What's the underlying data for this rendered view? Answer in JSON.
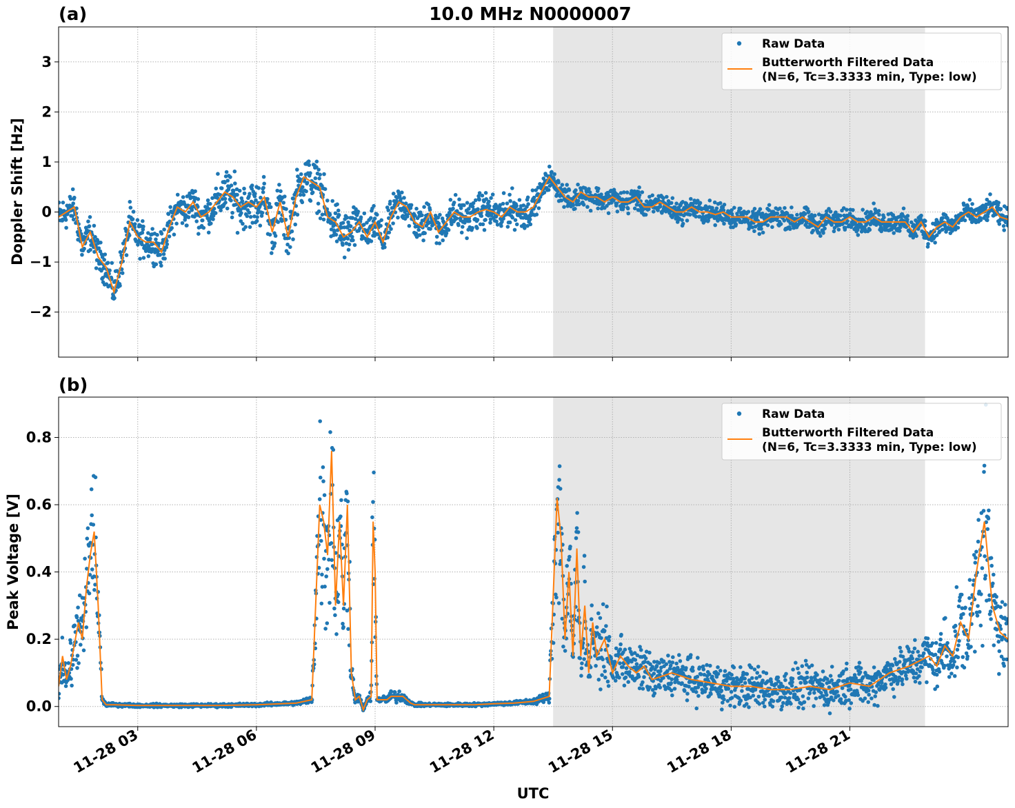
{
  "figure": {
    "title": "10.0 MHz N0000007",
    "xlabel": "UTC"
  },
  "chart_data": [
    {
      "panel_label": "(a)",
      "type": "scatter",
      "ylabel": "Doppler Shift [Hz]",
      "x_range_hours": [
        1.0,
        25.0
      ],
      "ylim": [
        -2.9,
        3.7
      ],
      "yticks": [
        -2,
        -1,
        0,
        1,
        2,
        3
      ],
      "ytick_labels": [
        "−2",
        "−1",
        "0",
        "1",
        "2",
        "3"
      ],
      "xtick_hours": [
        3,
        6,
        9,
        12,
        15,
        18,
        21
      ],
      "xtick_labels": [
        "11-28 03",
        "11-28 06",
        "11-28 09",
        "11-28 12",
        "11-28 15",
        "11-28 18",
        "11-28 21"
      ],
      "shaded_span_hours": [
        13.5,
        22.9
      ],
      "grid": true,
      "legend": {
        "placement": "top-right",
        "entries": [
          {
            "label": "Raw Data",
            "line2": ""
          },
          {
            "label": "Butterworth Filtered Data",
            "line2": "(N=6, Tc=3.3333 min, Type: low)"
          }
        ]
      },
      "colors": {
        "raw": "#1f77b4",
        "filtered": "#ff7f0e",
        "shade": "#e6e6e6",
        "grid": "#b0b0b0"
      },
      "series": [
        {
          "name": "Butterworth Filtered Data",
          "x": [
            1.0,
            1.2,
            1.4,
            1.6,
            1.8,
            2.0,
            2.2,
            2.4,
            2.6,
            2.8,
            3.0,
            3.2,
            3.4,
            3.6,
            3.8,
            4.0,
            4.2,
            4.4,
            4.6,
            4.8,
            5.0,
            5.2,
            5.4,
            5.6,
            5.8,
            6.0,
            6.2,
            6.4,
            6.6,
            6.8,
            7.0,
            7.2,
            7.4,
            7.6,
            7.8,
            8.0,
            8.2,
            8.4,
            8.6,
            8.8,
            9.0,
            9.2,
            9.4,
            9.6,
            9.8,
            10.0,
            10.2,
            10.4,
            10.6,
            10.8,
            11.0,
            11.2,
            11.4,
            11.6,
            11.8,
            12.0,
            12.2,
            12.4,
            12.6,
            12.8,
            13.0,
            13.2,
            13.4,
            13.6,
            13.8,
            14.0,
            14.2,
            14.4,
            14.6,
            14.8,
            15.0,
            15.2,
            15.4,
            15.6,
            15.8,
            16.0,
            16.2,
            16.4,
            16.6,
            16.8,
            17.0,
            17.2,
            17.4,
            17.6,
            17.8,
            18.0,
            18.2,
            18.4,
            18.6,
            18.8,
            19.0,
            19.2,
            19.4,
            19.6,
            19.8,
            20.0,
            20.2,
            20.4,
            20.6,
            20.8,
            21.0,
            21.2,
            21.4,
            21.6,
            21.8,
            22.0,
            22.2,
            22.4,
            22.6,
            22.8,
            23.0,
            23.2,
            23.4,
            23.6,
            23.8,
            24.0,
            24.2,
            24.4,
            24.6,
            24.8,
            25.0
          ],
          "y": [
            -0.1,
            0.0,
            0.1,
            -0.7,
            -0.4,
            -0.9,
            -1.1,
            -1.6,
            -1.0,
            -0.2,
            -0.5,
            -0.6,
            -0.6,
            -0.8,
            -0.3,
            0.1,
            0.0,
            0.2,
            -0.1,
            0.0,
            0.2,
            0.4,
            0.3,
            0.1,
            0.2,
            0.1,
            0.3,
            -0.4,
            0.2,
            -0.5,
            0.3,
            0.7,
            0.6,
            0.5,
            -0.1,
            -0.2,
            -0.5,
            -0.4,
            -0.2,
            -0.5,
            -0.2,
            -0.6,
            -0.1,
            0.2,
            0.1,
            -0.2,
            -0.3,
            0.0,
            -0.4,
            -0.2,
            0.0,
            -0.1,
            -0.1,
            0.0,
            0.05,
            0.0,
            -0.1,
            0.1,
            0.0,
            0.0,
            0.1,
            0.4,
            0.7,
            0.5,
            0.3,
            0.2,
            0.4,
            0.3,
            0.3,
            0.2,
            0.3,
            0.2,
            0.2,
            0.3,
            0.1,
            0.1,
            0.2,
            0.1,
            0.0,
            0.0,
            0.1,
            0.0,
            0.0,
            -0.05,
            0.0,
            -0.1,
            -0.1,
            -0.1,
            -0.2,
            -0.2,
            -0.1,
            -0.1,
            -0.1,
            -0.2,
            -0.1,
            -0.2,
            -0.3,
            -0.1,
            -0.2,
            -0.2,
            -0.1,
            -0.2,
            -0.2,
            -0.1,
            -0.2,
            -0.2,
            -0.2,
            -0.2,
            -0.4,
            -0.2,
            -0.5,
            -0.3,
            -0.2,
            -0.3,
            -0.1,
            0.0,
            -0.1,
            0.0,
            0.1,
            -0.1,
            -0.15
          ]
        }
      ]
    },
    {
      "panel_label": "(b)",
      "type": "scatter",
      "ylabel": "Peak Voltage [V]",
      "x_range_hours": [
        1.0,
        25.0
      ],
      "ylim": [
        -0.06,
        0.92
      ],
      "yticks": [
        0.0,
        0.2,
        0.4,
        0.6,
        0.8
      ],
      "ytick_labels": [
        "0.0",
        "0.2",
        "0.4",
        "0.6",
        "0.8"
      ],
      "xtick_hours": [
        3,
        6,
        9,
        12,
        15,
        18,
        21
      ],
      "xtick_labels": [
        "11-28 03",
        "11-28 06",
        "11-28 09",
        "11-28 12",
        "11-28 15",
        "11-28 18",
        "11-28 21"
      ],
      "shaded_span_hours": [
        13.5,
        22.9
      ],
      "grid": true,
      "legend": {
        "placement": "top-right",
        "entries": [
          {
            "label": "Raw Data",
            "line2": ""
          },
          {
            "label": "Butterworth Filtered Data",
            "line2": "(N=6, Tc=3.3333 min, Type: low)"
          }
        ]
      },
      "colors": {
        "raw": "#1f77b4",
        "filtered": "#ff7f0e",
        "shade": "#e6e6e6",
        "grid": "#b0b0b0"
      },
      "series": [
        {
          "name": "Butterworth Filtered Data",
          "x": [
            1.0,
            1.1,
            1.2,
            1.3,
            1.5,
            1.6,
            1.7,
            1.8,
            1.9,
            2.0,
            2.1,
            2.2,
            2.4,
            3.0,
            4.0,
            5.0,
            6.0,
            7.0,
            7.4,
            7.6,
            7.7,
            7.8,
            7.9,
            8.0,
            8.1,
            8.2,
            8.3,
            8.4,
            8.5,
            8.6,
            8.7,
            8.8,
            8.9,
            8.95,
            9.0,
            9.05,
            9.1,
            9.2,
            9.3,
            9.4,
            9.5,
            9.6,
            9.7,
            9.8,
            9.9,
            10.0,
            10.5,
            11.0,
            11.5,
            12.0,
            12.5,
            13.0,
            13.4,
            13.6,
            13.7,
            13.8,
            13.9,
            14.0,
            14.1,
            14.2,
            14.3,
            14.4,
            14.5,
            14.6,
            14.8,
            15.0,
            15.2,
            15.4,
            15.6,
            15.8,
            16.0,
            16.5,
            17.0,
            17.5,
            18.0,
            18.5,
            19.0,
            19.5,
            20.0,
            20.5,
            21.0,
            21.5,
            22.0,
            22.5,
            23.0,
            23.2,
            23.4,
            23.6,
            23.8,
            24.0,
            24.2,
            24.4,
            24.6,
            24.8,
            25.0
          ],
          "y": [
            0.06,
            0.15,
            0.08,
            0.12,
            0.25,
            0.2,
            0.35,
            0.45,
            0.52,
            0.3,
            0.02,
            0.005,
            0.005,
            0.003,
            0.003,
            0.003,
            0.005,
            0.01,
            0.02,
            0.6,
            0.55,
            0.45,
            0.76,
            0.3,
            0.55,
            0.3,
            0.6,
            0.1,
            0.02,
            0.03,
            -0.01,
            0.02,
            0.03,
            0.55,
            0.4,
            0.02,
            0.02,
            0.02,
            0.02,
            0.03,
            0.03,
            0.03,
            0.03,
            0.02,
            0.01,
            0.005,
            0.005,
            0.005,
            0.005,
            0.008,
            0.01,
            0.015,
            0.03,
            0.62,
            0.5,
            0.2,
            0.4,
            0.15,
            0.47,
            0.15,
            0.3,
            0.1,
            0.25,
            0.15,
            0.2,
            0.1,
            0.15,
            0.12,
            0.1,
            0.12,
            0.08,
            0.1,
            0.08,
            0.07,
            0.06,
            0.06,
            0.05,
            0.05,
            0.06,
            0.05,
            0.07,
            0.06,
            0.1,
            0.12,
            0.15,
            0.12,
            0.18,
            0.15,
            0.25,
            0.2,
            0.4,
            0.55,
            0.3,
            0.22,
            0.2
          ]
        }
      ]
    }
  ]
}
